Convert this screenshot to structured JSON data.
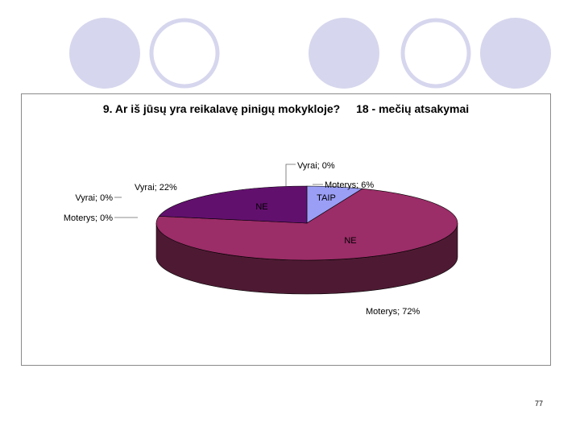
{
  "slide": {
    "page_number": "77"
  },
  "colors": {
    "circle_filled": "#d6d6ee",
    "circle_outline": "#d6d6ee",
    "pie_ne_moterys_top": "#9b2d68",
    "pie_ne_moterys_side": "#4e1a33",
    "pie_ne_vyrai_top": "#62106e",
    "pie_ne_vyrai_side": "#3b0a42",
    "pie_taip_moterys_top": "#9a9ef5",
    "pie_taip_moterys_side": "#6a6ec0"
  },
  "chart_data": {
    "type": "pie",
    "style": "3d",
    "title": "9. Ar iš jūsų yra reikalavę pinigų mokykloje?",
    "subtitle": "18 - mečių atsakymai",
    "slices": [
      {
        "group": "TAIP",
        "label": "Vyrai; 0%",
        "value": 0
      },
      {
        "group": "TAIP",
        "label": "Moterys; 6%",
        "value": 6
      },
      {
        "group": "NE",
        "label": "Moterys; 72%",
        "value": 72
      },
      {
        "group": "NE",
        "label": "Moterys; 0%",
        "value": 0
      },
      {
        "group": "NE",
        "label": "Vyrai; 0%",
        "value": 0
      },
      {
        "group": "NE",
        "label": "Vyrai; 22%",
        "value": 22
      }
    ],
    "group_labels": [
      "TAIP",
      "NE",
      "NE"
    ]
  }
}
